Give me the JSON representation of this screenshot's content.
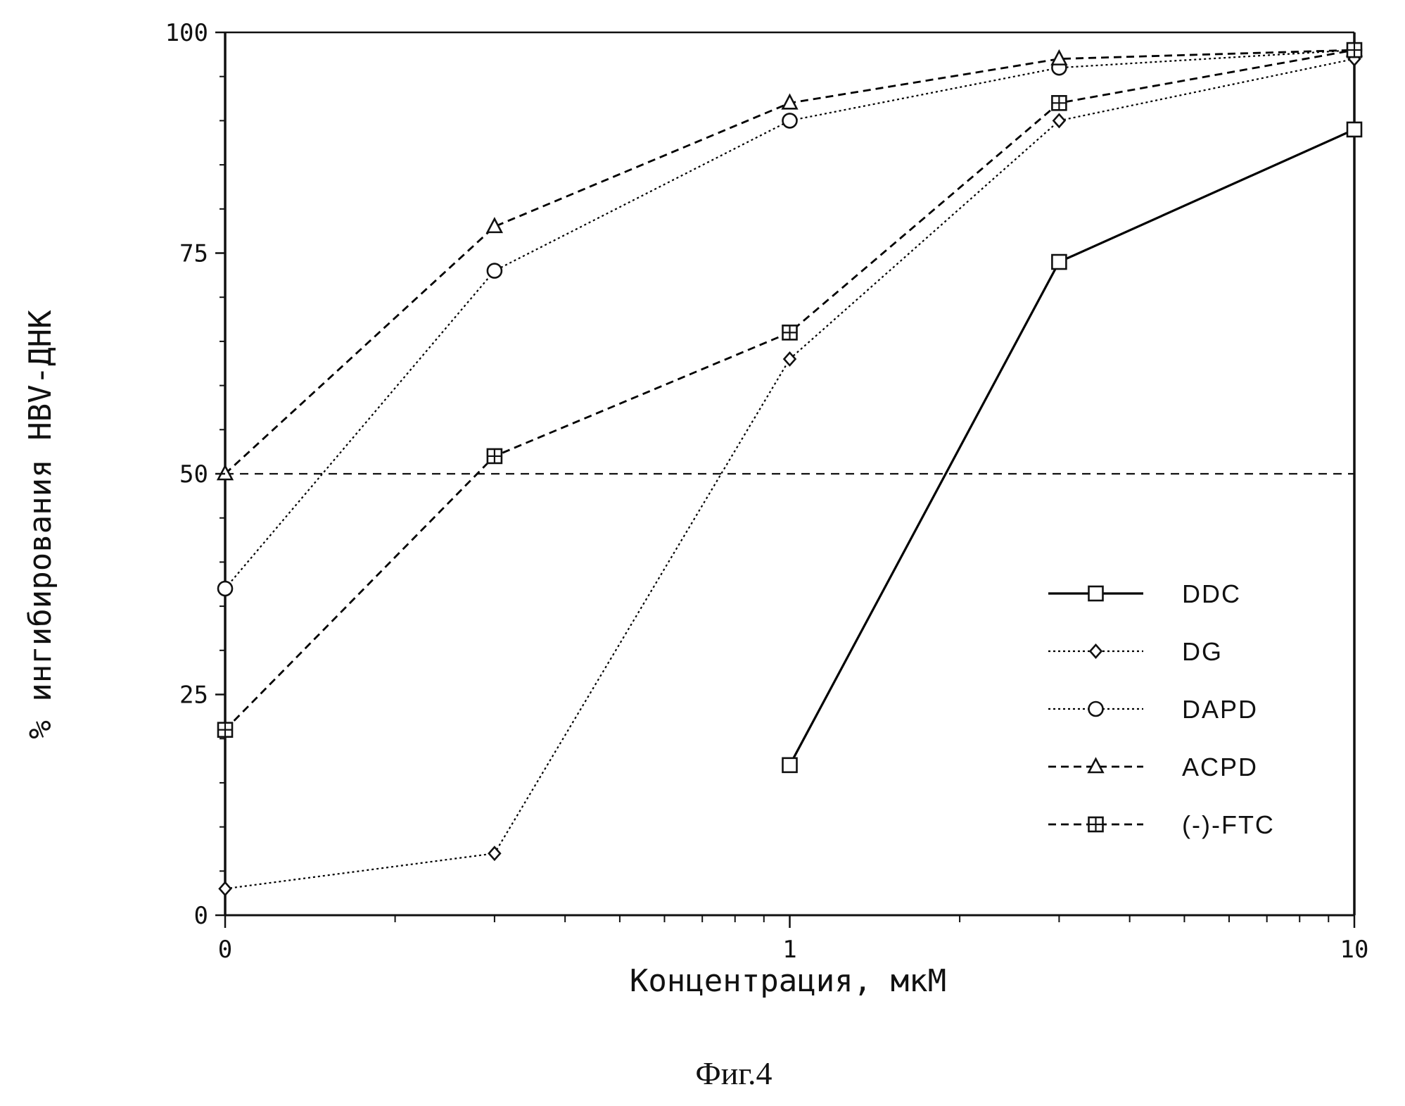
{
  "chart_data": {
    "type": "line",
    "title": "",
    "caption": "Фиг.4",
    "xlabel": "Концентрация, мкМ",
    "ylabel": "% ингибирования HBV-ДНК",
    "x_scale": "log",
    "xlim": [
      0.1,
      10
    ],
    "ylim": [
      0,
      100
    ],
    "x_ticks": [
      {
        "value": 0.1,
        "label": "0"
      },
      {
        "value": 1,
        "label": "1"
      },
      {
        "value": 10,
        "label": "10"
      }
    ],
    "y_ticks": [
      {
        "value": 0,
        "label": "0"
      },
      {
        "value": 25,
        "label": "25"
      },
      {
        "value": 50,
        "label": "50"
      },
      {
        "value": 75,
        "label": "75"
      },
      {
        "value": 100,
        "label": "100"
      }
    ],
    "reference_line": {
      "y": 50,
      "style": "dashed"
    },
    "grid": false,
    "legend_position": "lower-right",
    "series": [
      {
        "name": "DDC",
        "marker": "square",
        "line": "solid",
        "color": "#000000",
        "x": [
          1,
          3,
          10
        ],
        "y": [
          17,
          74,
          89
        ]
      },
      {
        "name": "DG",
        "marker": "diamond",
        "line": "dotted",
        "color": "#000000",
        "x": [
          0.1,
          0.3,
          1,
          3,
          10
        ],
        "y": [
          3,
          7,
          63,
          90,
          97
        ]
      },
      {
        "name": "DAPD",
        "marker": "circle",
        "line": "dotted",
        "color": "#000000",
        "x": [
          0.1,
          0.3,
          1,
          3,
          10
        ],
        "y": [
          37,
          73,
          90,
          96,
          98
        ]
      },
      {
        "name": "ACPD",
        "marker": "triangle",
        "line": "dashed",
        "color": "#000000",
        "x": [
          0.1,
          0.3,
          1,
          3,
          10
        ],
        "y": [
          50,
          78,
          92,
          97,
          98
        ]
      },
      {
        "name": "(-)-FTC",
        "marker": "crossed-square",
        "line": "dashed",
        "color": "#000000",
        "x": [
          0.1,
          0.3,
          1,
          3,
          10
        ],
        "y": [
          21,
          52,
          66,
          92,
          98
        ]
      }
    ]
  }
}
